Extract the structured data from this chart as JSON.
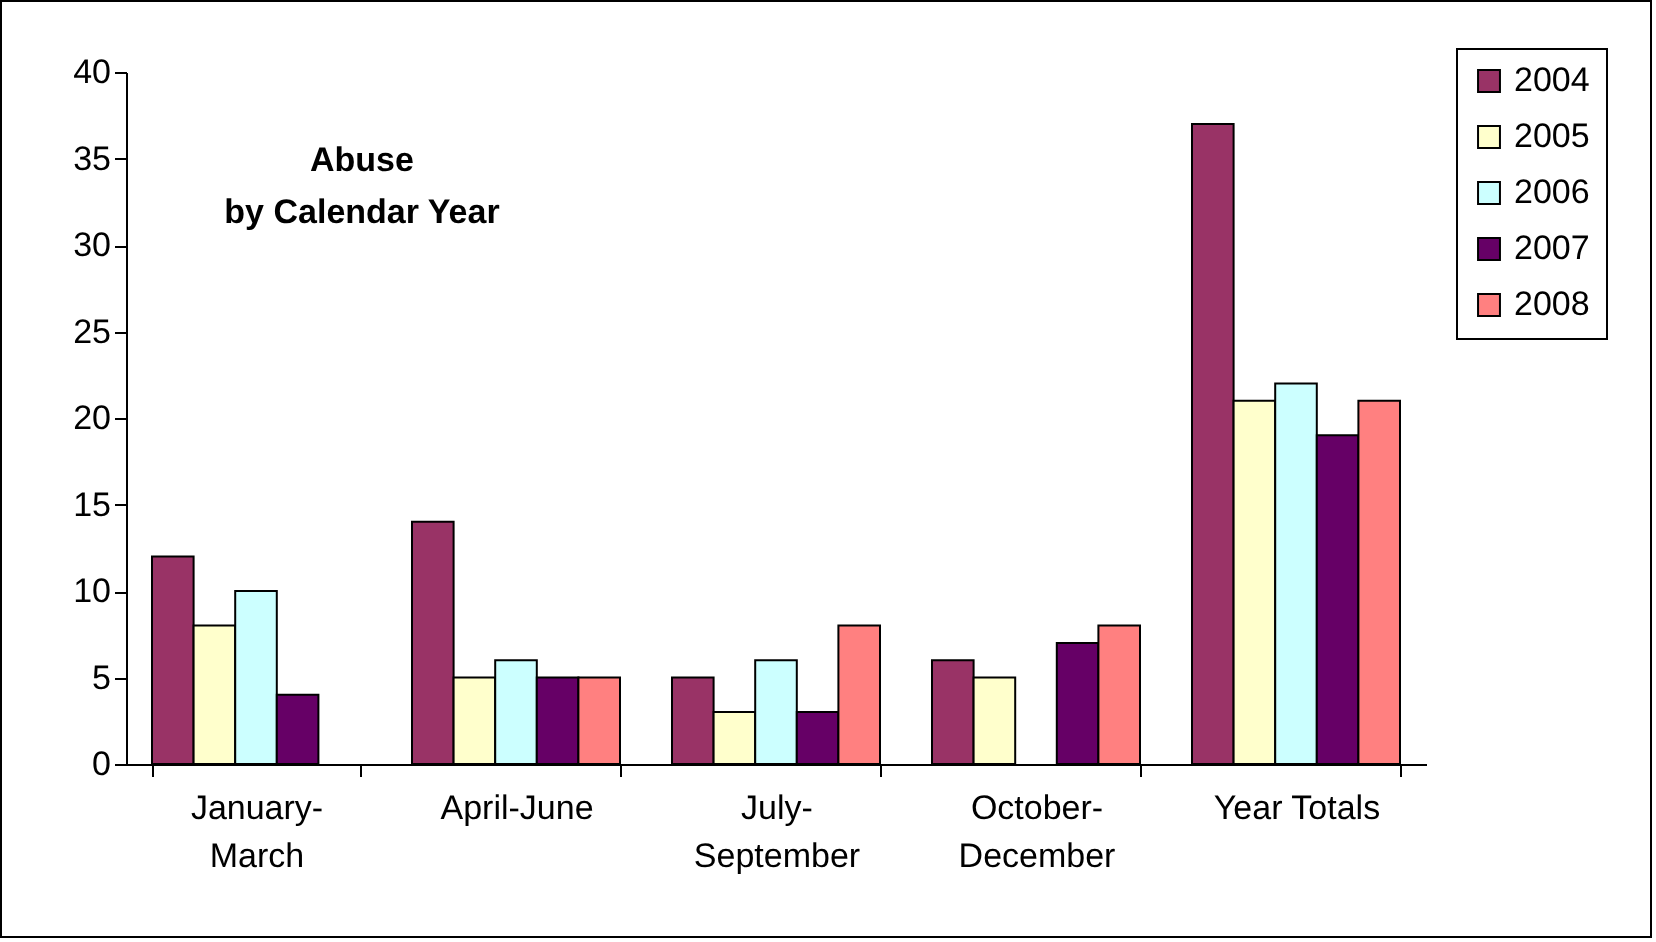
{
  "chart_data": {
    "type": "bar",
    "title": "Abuse by Calendar Year",
    "categories": [
      "January-March",
      "April-June",
      "July-September",
      "October-December",
      "Year Totals"
    ],
    "series": [
      {
        "name": "2004",
        "color": "#993366",
        "values": [
          12,
          14,
          5,
          6,
          37
        ]
      },
      {
        "name": "2005",
        "color": "#ffffcc",
        "values": [
          8,
          5,
          3,
          5,
          21
        ]
      },
      {
        "name": "2006",
        "color": "#ccffff",
        "values": [
          10,
          6,
          6,
          null,
          22
        ]
      },
      {
        "name": "2007",
        "color": "#660066",
        "values": [
          4,
          5,
          3,
          7,
          19
        ]
      },
      {
        "name": "2008",
        "color": "#ff8080",
        "values": [
          null,
          5,
          8,
          8,
          21
        ]
      }
    ],
    "ylim": [
      0,
      40
    ],
    "yticks": [
      0,
      5,
      10,
      15,
      20,
      25,
      30,
      35,
      40
    ],
    "grid": false,
    "legend": "top right"
  }
}
